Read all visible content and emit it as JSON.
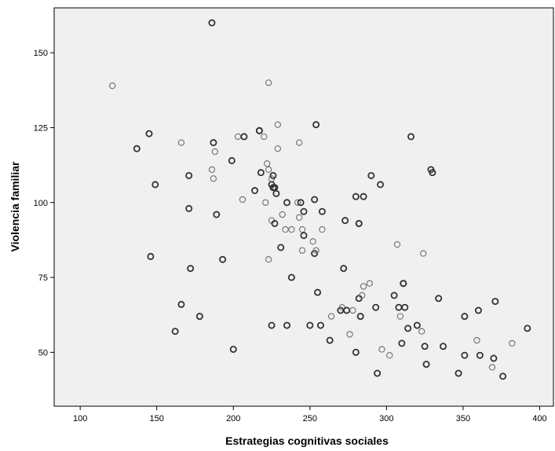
{
  "chart_data": {
    "type": "scatter",
    "title": "",
    "xlabel": "Estrategias cognitivas sociales",
    "ylabel": "Violencia familiar",
    "xlim": [
      83,
      409
    ],
    "ylim": [
      32,
      165
    ],
    "xticks": [
      100,
      150,
      200,
      250,
      300,
      350,
      400
    ],
    "yticks": [
      50,
      75,
      100,
      125,
      150
    ],
    "grid": false,
    "legend": "none",
    "colors": {
      "plot_bg": "#f0f0f0",
      "marker": "#333333",
      "marker_light": "#777777"
    },
    "points": [
      [
        121,
        139
      ],
      [
        137,
        118
      ],
      [
        145,
        123
      ],
      [
        146,
        82
      ],
      [
        149,
        106
      ],
      [
        162,
        57
      ],
      [
        166,
        66
      ],
      [
        166,
        120
      ],
      [
        171,
        109
      ],
      [
        171,
        98
      ],
      [
        172,
        78
      ],
      [
        178,
        62
      ],
      [
        186,
        160
      ],
      [
        186,
        111
      ],
      [
        187,
        108
      ],
      [
        187,
        120
      ],
      [
        188,
        117
      ],
      [
        189,
        96
      ],
      [
        193,
        81
      ],
      [
        199,
        114
      ],
      [
        200,
        51
      ],
      [
        203,
        122
      ],
      [
        206,
        101
      ],
      [
        207,
        122
      ],
      [
        214,
        104
      ],
      [
        217,
        124
      ],
      [
        217,
        124
      ],
      [
        218,
        110
      ],
      [
        220,
        122
      ],
      [
        221,
        100
      ],
      [
        222,
        113
      ],
      [
        223,
        81
      ],
      [
        223,
        140
      ],
      [
        223,
        111
      ],
      [
        225,
        59
      ],
      [
        225,
        106
      ],
      [
        225,
        94
      ],
      [
        225,
        108
      ],
      [
        226,
        105
      ],
      [
        226,
        109
      ],
      [
        227,
        105
      ],
      [
        227,
        93
      ],
      [
        228,
        103
      ],
      [
        229,
        126
      ],
      [
        229,
        118
      ],
      [
        231,
        85
      ],
      [
        232,
        96
      ],
      [
        234,
        91
      ],
      [
        235,
        59
      ],
      [
        235,
        100
      ],
      [
        238,
        75
      ],
      [
        238,
        91
      ],
      [
        242,
        100
      ],
      [
        243,
        95
      ],
      [
        243,
        120
      ],
      [
        244,
        100
      ],
      [
        245,
        84
      ],
      [
        245,
        91
      ],
      [
        246,
        89
      ],
      [
        246,
        97
      ],
      [
        250,
        59
      ],
      [
        252,
        87
      ],
      [
        253,
        101
      ],
      [
        253,
        83
      ],
      [
        254,
        84
      ],
      [
        254,
        126
      ],
      [
        255,
        70
      ],
      [
        257,
        59
      ],
      [
        258,
        97
      ],
      [
        258,
        91
      ],
      [
        263,
        54
      ],
      [
        264,
        62
      ],
      [
        270,
        64
      ],
      [
        271,
        65
      ],
      [
        272,
        78
      ],
      [
        273,
        94
      ],
      [
        274,
        64
      ],
      [
        276,
        56
      ],
      [
        278,
        64
      ],
      [
        280,
        102
      ],
      [
        280,
        50
      ],
      [
        282,
        93
      ],
      [
        282,
        93
      ],
      [
        282,
        68
      ],
      [
        283,
        62
      ],
      [
        284,
        69
      ],
      [
        285,
        102
      ],
      [
        285,
        72
      ],
      [
        289,
        73
      ],
      [
        290,
        109
      ],
      [
        293,
        65
      ],
      [
        294,
        43
      ],
      [
        296,
        106
      ],
      [
        297,
        51
      ],
      [
        302,
        49
      ],
      [
        305,
        69
      ],
      [
        307,
        86
      ],
      [
        308,
        65
      ],
      [
        309,
        62
      ],
      [
        310,
        53
      ],
      [
        311,
        73
      ],
      [
        311,
        73
      ],
      [
        312,
        65
      ],
      [
        314,
        58
      ],
      [
        316,
        122
      ],
      [
        320,
        59
      ],
      [
        323,
        57
      ],
      [
        324,
        83
      ],
      [
        325,
        52
      ],
      [
        326,
        46
      ],
      [
        329,
        111
      ],
      [
        330,
        110
      ],
      [
        334,
        68
      ],
      [
        337,
        52
      ],
      [
        347,
        43
      ],
      [
        351,
        49
      ],
      [
        351,
        62
      ],
      [
        359,
        54
      ],
      [
        360,
        64
      ],
      [
        361,
        49
      ],
      [
        369,
        45
      ],
      [
        370,
        48
      ],
      [
        371,
        67
      ],
      [
        376,
        42
      ],
      [
        382,
        53
      ],
      [
        392,
        58
      ]
    ],
    "light_points": [
      [
        121,
        139
      ],
      [
        166,
        120
      ],
      [
        186,
        111
      ],
      [
        187,
        108
      ],
      [
        188,
        117
      ],
      [
        203,
        122
      ],
      [
        206,
        101
      ],
      [
        220,
        122
      ],
      [
        221,
        100
      ],
      [
        222,
        113
      ],
      [
        223,
        81
      ],
      [
        223,
        140
      ],
      [
        223,
        111
      ],
      [
        225,
        108
      ],
      [
        225,
        94
      ],
      [
        229,
        126
      ],
      [
        229,
        118
      ],
      [
        232,
        96
      ],
      [
        234,
        91
      ],
      [
        238,
        91
      ],
      [
        242,
        100
      ],
      [
        243,
        95
      ],
      [
        243,
        120
      ],
      [
        245,
        84
      ],
      [
        245,
        91
      ],
      [
        252,
        87
      ],
      [
        254,
        84
      ],
      [
        258,
        91
      ],
      [
        264,
        62
      ],
      [
        271,
        65
      ],
      [
        278,
        64
      ],
      [
        284,
        69
      ],
      [
        285,
        72
      ],
      [
        289,
        73
      ],
      [
        309,
        62
      ],
      [
        323,
        57
      ],
      [
        359,
        54
      ],
      [
        369,
        45
      ],
      [
        382,
        53
      ],
      [
        307,
        86
      ],
      [
        324,
        83
      ],
      [
        313,
        65
      ],
      [
        297,
        51
      ],
      [
        302,
        49
      ],
      [
        276,
        56
      ]
    ]
  }
}
